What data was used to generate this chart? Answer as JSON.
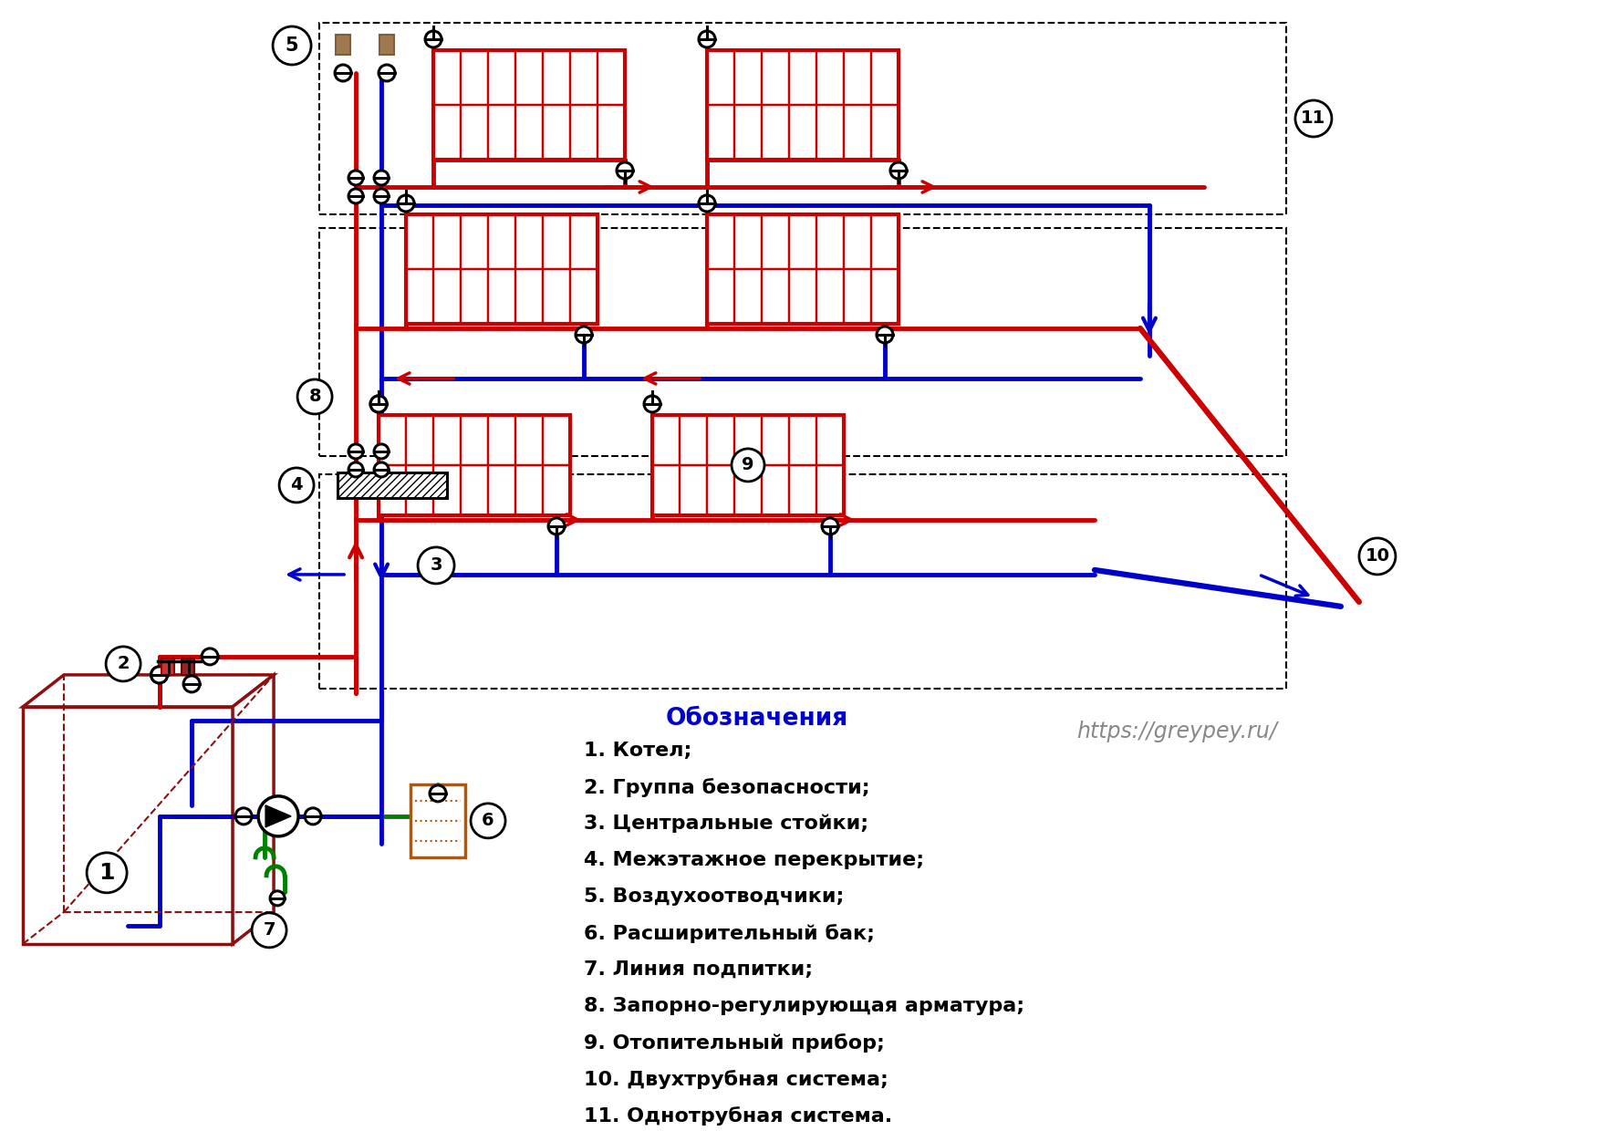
{
  "bg_color": "#ffffff",
  "red": "#cc0000",
  "blue": "#0000cc",
  "darkred": "#8b1010",
  "green": "#008000",
  "orange": "#b85500",
  "black": "#000000",
  "legend_title": "Обозначения",
  "legend_items": [
    "1. Котел;",
    "2. Группа безопасности;",
    "3. Центральные стойки;",
    "4. Межэтажное перекрытие;",
    "5. Воздухоотводчики;",
    "6. Расширительный бак;",
    "7. Линия подпитки;",
    "8. Запорно-регулирующая арматура;",
    "9. Отопительный прибор;",
    "10. Двухтрубная система;",
    "11. Однотрубная система."
  ],
  "website": "https://greypey.ru/"
}
